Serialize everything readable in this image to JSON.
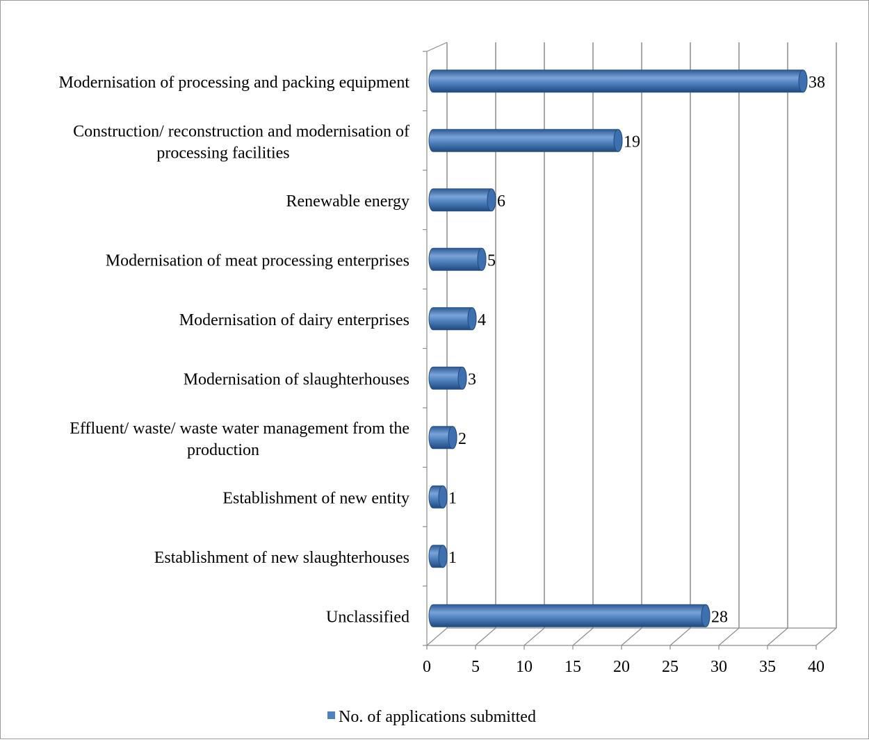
{
  "chart_data": {
    "type": "bar",
    "orientation": "horizontal",
    "style": "3d-cylinder",
    "categories": [
      [
        "Modernisation of processing and packing equipment"
      ],
      [
        "Construction/ reconstruction and modernisation of",
        "processing facilities"
      ],
      [
        "Renewable energy"
      ],
      [
        "Modernisation of meat processing enterprises"
      ],
      [
        "Modernisation of dairy enterprises"
      ],
      [
        "Modernisation of slaughterhouses"
      ],
      [
        "Effluent/ waste/ waste water management from the",
        "production"
      ],
      [
        "Establishment of new entity"
      ],
      [
        "Establishment of new slaughterhouses"
      ],
      [
        "Unclassified"
      ]
    ],
    "series": [
      {
        "name": "No. of applications submitted",
        "color": "#4f81bd",
        "values": [
          38,
          19,
          6,
          5,
          4,
          3,
          2,
          1,
          1,
          28
        ]
      }
    ],
    "data_labels": [
      "38",
      "19",
      "6",
      "5",
      "4",
      "3",
      "2",
      "1",
      "1",
      "28"
    ],
    "xlim": [
      0,
      40
    ],
    "x_ticks": [
      "0",
      "5",
      "10",
      "15",
      "20",
      "25",
      "30",
      "35",
      "40"
    ],
    "grid": true,
    "legend_position": "bottom"
  }
}
